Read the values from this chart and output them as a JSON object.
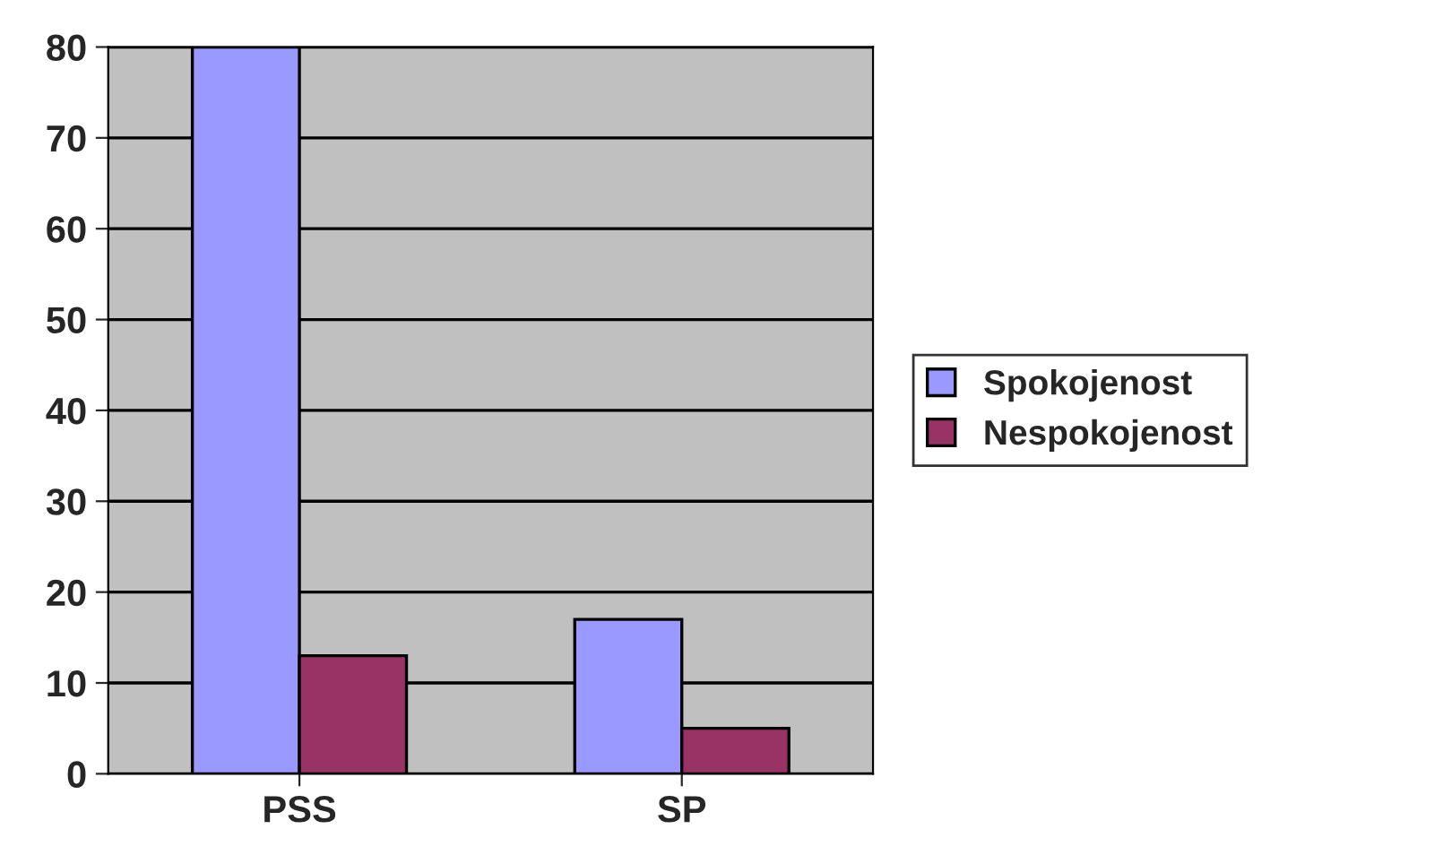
{
  "chart_data": {
    "type": "bar",
    "categories": [
      "PSS",
      "SP"
    ],
    "series": [
      {
        "name": "Spokojenost",
        "color": "#9999ff",
        "values": [
          80,
          17
        ]
      },
      {
        "name": "Nespokojenost",
        "color": "#993366",
        "values": [
          13,
          5
        ]
      }
    ],
    "ylim": [
      0,
      80
    ],
    "yticks": [
      0,
      10,
      20,
      30,
      40,
      50,
      60,
      70,
      80
    ],
    "grid": "y",
    "legend": "right"
  }
}
